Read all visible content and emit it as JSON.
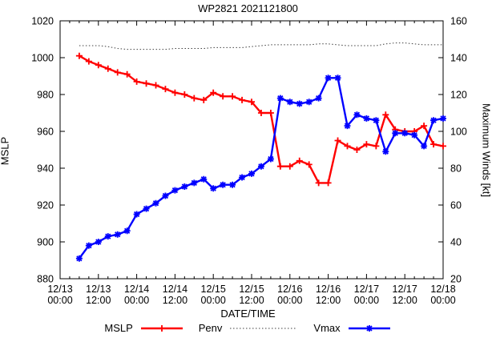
{
  "title": "WP2821 2021121800",
  "axes": {
    "left_label": "MSLP",
    "right_label": "Maximum Winds [kt]",
    "x_label": "DATE/TIME",
    "left_ticks": [
      880,
      900,
      920,
      940,
      960,
      980,
      1000,
      1020
    ],
    "right_ticks": [
      20,
      40,
      60,
      80,
      100,
      120,
      140,
      160
    ],
    "x_ticks": [
      {
        "line1": "12/13",
        "line2": "00:00",
        "hour": 0
      },
      {
        "line1": "12/13",
        "line2": "12:00",
        "hour": 12
      },
      {
        "line1": "12/14",
        "line2": "00:00",
        "hour": 24
      },
      {
        "line1": "12/14",
        "line2": "12:00",
        "hour": 36
      },
      {
        "line1": "12/15",
        "line2": "00:00",
        "hour": 48
      },
      {
        "line1": "12/15",
        "line2": "12:00",
        "hour": 60
      },
      {
        "line1": "12/16",
        "line2": "00:00",
        "hour": 72
      },
      {
        "line1": "12/16",
        "line2": "12:00",
        "hour": 84
      },
      {
        "line1": "12/17",
        "line2": "00:00",
        "hour": 96
      },
      {
        "line1": "12/17",
        "line2": "12:00",
        "hour": 108
      },
      {
        "line1": "12/18",
        "line2": "00:00",
        "hour": 120
      }
    ],
    "minor_tick_hours": 3,
    "x_range_hours": [
      0,
      120
    ]
  },
  "legend": [
    {
      "label": "MSLP",
      "color": "#ff0000",
      "style": "plus-line"
    },
    {
      "label": "Penv",
      "color": "#404040",
      "style": "dotted"
    },
    {
      "label": "Vmax",
      "color": "#0000ff",
      "style": "star-line"
    }
  ],
  "chart_data": {
    "type": "line",
    "title": "WP2821 2021121800",
    "xlabel": "DATE/TIME",
    "ylabel_left": "MSLP",
    "ylabel_right": "Maximum Winds [kt]",
    "ylim_left": [
      880,
      1020
    ],
    "ylim_right": [
      20,
      160
    ],
    "x_hours": [
      6,
      9,
      12,
      15,
      18,
      21,
      24,
      27,
      30,
      33,
      36,
      39,
      42,
      45,
      48,
      51,
      54,
      57,
      60,
      63,
      66,
      69,
      72,
      75,
      78,
      81,
      84,
      87,
      90,
      93,
      96,
      99,
      102,
      105,
      108,
      111,
      114,
      117,
      120
    ],
    "series": [
      {
        "name": "MSLP",
        "axis": "left",
        "color": "#ff0000",
        "marker": "plus",
        "line": "solid",
        "values": [
          1001,
          998,
          996,
          994,
          992,
          991,
          987,
          986,
          985,
          983,
          981,
          980,
          978,
          977,
          981,
          979,
          979,
          977,
          976,
          970,
          970,
          941,
          941,
          944,
          942,
          932,
          932,
          955,
          952,
          950,
          953,
          952,
          969,
          961,
          960,
          960,
          963,
          953,
          952
        ]
      },
      {
        "name": "Penv",
        "axis": "left",
        "color": "#404040",
        "marker": "none",
        "line": "dotted",
        "values": [
          1006.5,
          1006.5,
          1006.5,
          1006,
          1005,
          1004.5,
          1004.5,
          1004.5,
          1004.5,
          1004.5,
          1005,
          1005,
          1005,
          1005,
          1005.5,
          1005.5,
          1005.5,
          1005.5,
          1006,
          1006.5,
          1007,
          1007,
          1007,
          1007,
          1007,
          1007.5,
          1007.5,
          1007,
          1006.5,
          1006.5,
          1006.5,
          1006.5,
          1007.5,
          1008,
          1008,
          1007.5,
          1007,
          1007,
          1007
        ]
      },
      {
        "name": "Vmax",
        "axis": "right",
        "color": "#0000ff",
        "marker": "star",
        "line": "solid",
        "values": [
          31,
          38,
          40,
          43,
          44,
          46,
          55,
          58,
          61,
          65,
          68,
          70,
          72,
          74,
          69,
          71,
          71,
          75,
          77,
          81,
          85,
          118,
          116,
          115,
          116,
          118,
          129,
          129,
          103,
          109,
          107,
          106,
          89,
          99,
          99,
          98,
          92,
          106,
          107
        ]
      }
    ]
  }
}
